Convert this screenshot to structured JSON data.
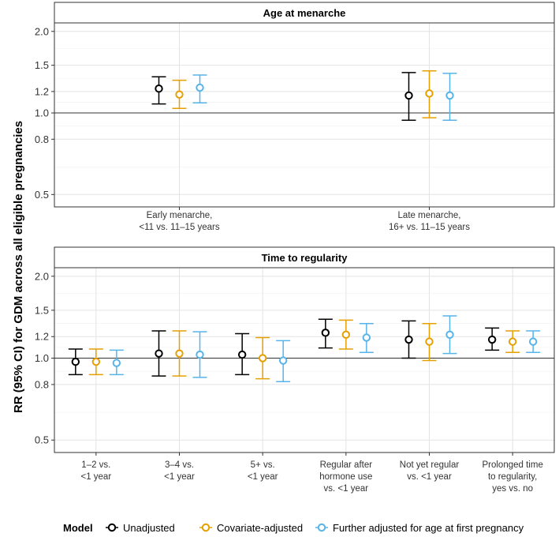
{
  "chart_data": {
    "type": "scatter",
    "subtype": "point-range (forest plot)",
    "ylabel": "RR (95% CI) for GDM across all eligible pregnancies",
    "y_scale": "log",
    "ylim": [
      0.45,
      2.15
    ],
    "yticks": [
      {
        "value": 0.5,
        "label": "0.5"
      },
      {
        "value": 0.8,
        "label": "0.8"
      },
      {
        "value": 1.0,
        "label": "1.0"
      },
      {
        "value": 1.2,
        "label": "1.2"
      },
      {
        "value": 1.5,
        "label": "1.5"
      },
      {
        "value": 2.0,
        "label": "2.0"
      }
    ],
    "reference_line": 1.0,
    "legend": {
      "title": "Model",
      "placement": "bottom",
      "entries": [
        {
          "key": "unadjusted",
          "label": "Unadjusted",
          "color": "#000000"
        },
        {
          "key": "covariate",
          "label": "Covariate-adjusted",
          "color": "#E69F00"
        },
        {
          "key": "further",
          "label": "Further adjusted for age at first pregnancy",
          "color": "#56B4E9"
        }
      ]
    },
    "panels": [
      {
        "title": "Age at menarche",
        "categories": [
          {
            "lines": [
              "Early menarche,",
              "<11 vs. 11–15 years"
            ],
            "estimates": {
              "unadjusted": {
                "est": 1.23,
                "lo": 1.08,
                "hi": 1.36
              },
              "covariate": {
                "est": 1.17,
                "lo": 1.04,
                "hi": 1.32
              },
              "further": {
                "est": 1.24,
                "lo": 1.09,
                "hi": 1.38
              }
            }
          },
          {
            "lines": [
              "Late menarche,",
              "16+ vs. 11–15 years"
            ],
            "estimates": {
              "unadjusted": {
                "est": 1.16,
                "lo": 0.94,
                "hi": 1.41
              },
              "covariate": {
                "est": 1.18,
                "lo": 0.96,
                "hi": 1.43
              },
              "further": {
                "est": 1.16,
                "lo": 0.94,
                "hi": 1.4
              }
            }
          }
        ]
      },
      {
        "title": "Time to regularity",
        "categories": [
          {
            "lines": [
              "1–2 vs.",
              "<1 year"
            ],
            "estimates": {
              "unadjusted": {
                "est": 0.97,
                "lo": 0.87,
                "hi": 1.08
              },
              "covariate": {
                "est": 0.97,
                "lo": 0.87,
                "hi": 1.08
              },
              "further": {
                "est": 0.96,
                "lo": 0.87,
                "hi": 1.07
              }
            }
          },
          {
            "lines": [
              "3–4 vs.",
              "<1 year"
            ],
            "estimates": {
              "unadjusted": {
                "est": 1.04,
                "lo": 0.86,
                "hi": 1.26
              },
              "covariate": {
                "est": 1.04,
                "lo": 0.86,
                "hi": 1.26
              },
              "further": {
                "est": 1.03,
                "lo": 0.85,
                "hi": 1.25
              }
            }
          },
          {
            "lines": [
              "5+ vs.",
              "<1 year"
            ],
            "estimates": {
              "unadjusted": {
                "est": 1.03,
                "lo": 0.87,
                "hi": 1.23
              },
              "covariate": {
                "est": 1.0,
                "lo": 0.84,
                "hi": 1.19
              },
              "further": {
                "est": 0.98,
                "lo": 0.82,
                "hi": 1.16
              }
            }
          },
          {
            "lines": [
              "Regular after",
              "hormone use",
              "vs. <1 year"
            ],
            "estimates": {
              "unadjusted": {
                "est": 1.24,
                "lo": 1.09,
                "hi": 1.39
              },
              "covariate": {
                "est": 1.22,
                "lo": 1.08,
                "hi": 1.38
              },
              "further": {
                "est": 1.19,
                "lo": 1.05,
                "hi": 1.34
              }
            }
          },
          {
            "lines": [
              "Not yet regular",
              "vs. <1 year"
            ],
            "estimates": {
              "unadjusted": {
                "est": 1.17,
                "lo": 1.0,
                "hi": 1.37
              },
              "covariate": {
                "est": 1.15,
                "lo": 0.98,
                "hi": 1.34
              },
              "further": {
                "est": 1.22,
                "lo": 1.04,
                "hi": 1.43
              }
            }
          },
          {
            "lines": [
              "Prolonged time",
              "to regularity,",
              "yes vs. no"
            ],
            "estimates": {
              "unadjusted": {
                "est": 1.17,
                "lo": 1.07,
                "hi": 1.29
              },
              "covariate": {
                "est": 1.15,
                "lo": 1.05,
                "hi": 1.26
              },
              "further": {
                "est": 1.15,
                "lo": 1.05,
                "hi": 1.26
              }
            }
          }
        ]
      }
    ]
  }
}
